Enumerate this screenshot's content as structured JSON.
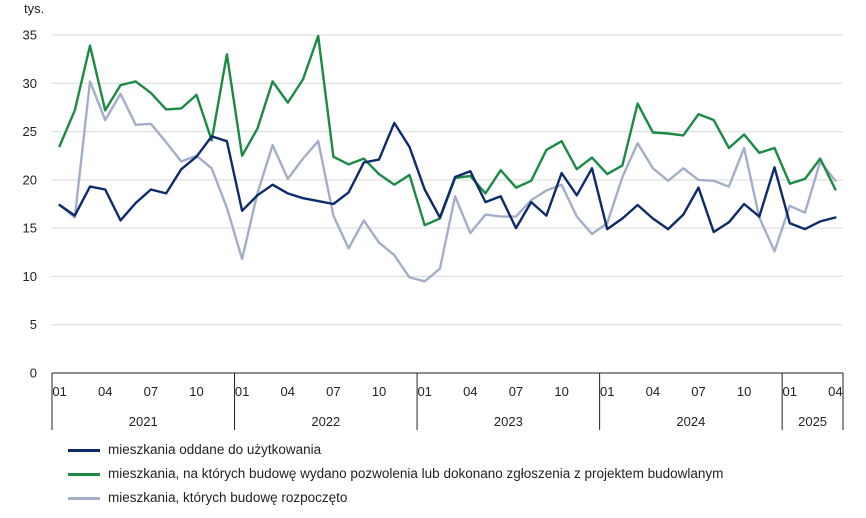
{
  "chart_data": {
    "type": "line",
    "unit_label": "tys.",
    "y_ticks": [
      "35",
      "30",
      "25",
      "20",
      "15",
      "10",
      "5",
      "0"
    ],
    "ylim": [
      0,
      35
    ],
    "ystep": 5,
    "x_tick_labels": [
      "01",
      "04",
      "07",
      "10",
      "01",
      "04",
      "07",
      "10",
      "01",
      "04",
      "07",
      "10",
      "01",
      "04",
      "07",
      "10",
      "01",
      "04"
    ],
    "x_tick_indices": [
      0,
      3,
      6,
      9,
      12,
      15,
      18,
      21,
      24,
      27,
      30,
      33,
      36,
      39,
      42,
      45,
      48,
      51
    ],
    "years": [
      {
        "label": "2021",
        "start": 0,
        "count": 12
      },
      {
        "label": "2022",
        "start": 12,
        "count": 12
      },
      {
        "label": "2023",
        "start": 24,
        "count": 12
      },
      {
        "label": "2024",
        "start": 36,
        "count": 12
      },
      {
        "label": "2025",
        "start": 48,
        "count": 4
      }
    ],
    "grid": true,
    "legend_position": "bottom",
    "series": [
      {
        "name": "mieszkania oddane do użytkowania",
        "color": "#0d2a6b",
        "values": [
          17.4,
          16.3,
          19.3,
          19.0,
          15.8,
          17.6,
          19.0,
          18.6,
          21.1,
          22.4,
          24.5,
          24.0,
          16.8,
          18.4,
          19.5,
          18.6,
          18.1,
          17.8,
          17.5,
          18.7,
          21.8,
          22.1,
          25.9,
          23.4,
          19.0,
          16.1,
          20.3,
          20.9,
          17.7,
          18.3,
          15.0,
          17.7,
          16.3,
          20.7,
          18.4,
          21.2,
          14.9,
          16.0,
          17.4,
          16.0,
          14.9,
          16.4,
          19.2,
          14.6,
          15.6,
          17.5,
          16.2,
          21.3,
          15.5,
          14.9,
          15.7,
          16.1
        ]
      },
      {
        "name": "mieszkania, na których budowę wydano pozwolenia lub dokonano zgłoszenia z projektem budowlanym",
        "color": "#1a8a45",
        "values": [
          23.5,
          27.2,
          33.9,
          27.2,
          29.8,
          30.2,
          29.0,
          27.3,
          27.4,
          28.8,
          24.1,
          33.0,
          22.5,
          25.3,
          30.2,
          28.0,
          30.4,
          34.9,
          22.4,
          21.6,
          22.2,
          20.6,
          19.5,
          20.5,
          15.3,
          16.0,
          20.2,
          20.4,
          18.6,
          21.0,
          19.2,
          19.9,
          23.1,
          24.0,
          21.1,
          22.3,
          20.6,
          21.5,
          27.9,
          24.9,
          24.8,
          24.6,
          26.8,
          26.2,
          23.3,
          24.7,
          22.8,
          23.3,
          19.6,
          20.1,
          22.2,
          19.0
        ]
      },
      {
        "name": "mieszkania, których budowę rozpoczęto",
        "color": "#a3aec8",
        "values": [
          17.4,
          16.1,
          30.2,
          26.2,
          28.9,
          25.7,
          25.8,
          23.9,
          21.9,
          22.5,
          21.2,
          17.1,
          11.8,
          18.6,
          23.6,
          20.1,
          22.2,
          24.0,
          16.3,
          12.9,
          15.8,
          13.5,
          12.2,
          9.9,
          9.5,
          10.8,
          18.3,
          14.5,
          16.4,
          16.2,
          16.2,
          17.9,
          18.9,
          19.5,
          16.2,
          14.4,
          15.5,
          20.3,
          23.8,
          21.2,
          19.9,
          21.2,
          20.0,
          19.9,
          19.3,
          23.3,
          16.1,
          12.6,
          17.3,
          16.6,
          21.9,
          19.9
        ]
      }
    ]
  }
}
